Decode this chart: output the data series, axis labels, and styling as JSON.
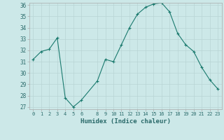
{
  "x": [
    0,
    1,
    2,
    3,
    4,
    5,
    6,
    8,
    9,
    10,
    11,
    12,
    13,
    14,
    15,
    16,
    17,
    18,
    19,
    20,
    21,
    22,
    23
  ],
  "y": [
    31.2,
    31.9,
    32.1,
    33.1,
    27.8,
    27.0,
    27.6,
    29.3,
    31.2,
    31.0,
    32.5,
    34.0,
    35.2,
    35.8,
    36.1,
    36.2,
    35.4,
    33.5,
    32.5,
    31.9,
    30.5,
    29.4,
    28.6
  ],
  "xlabel": "Humidex (Indice chaleur)",
  "ylim": [
    27,
    36
  ],
  "xlim": [
    -0.5,
    23.5
  ],
  "yticks": [
    27,
    28,
    29,
    30,
    31,
    32,
    33,
    34,
    35,
    36
  ],
  "xticks": [
    0,
    1,
    2,
    3,
    4,
    5,
    6,
    8,
    9,
    10,
    11,
    12,
    13,
    14,
    15,
    16,
    17,
    18,
    19,
    20,
    21,
    22,
    23
  ],
  "xtick_labels": [
    "0",
    "1",
    "2",
    "3",
    "4",
    "5",
    "6",
    "8",
    "9",
    "10",
    "11",
    "12",
    "13",
    "14",
    "15",
    "16",
    "17",
    "18",
    "19",
    "20",
    "21",
    "22",
    "23"
  ],
  "line_color": "#1a7a6e",
  "marker": "+",
  "bg_color": "#cce8e8",
  "grid_color": "#b8d4d4",
  "spine_color": "#aaaaaa",
  "tick_color": "#2a6a6a",
  "label_color": "#2a6a6a"
}
